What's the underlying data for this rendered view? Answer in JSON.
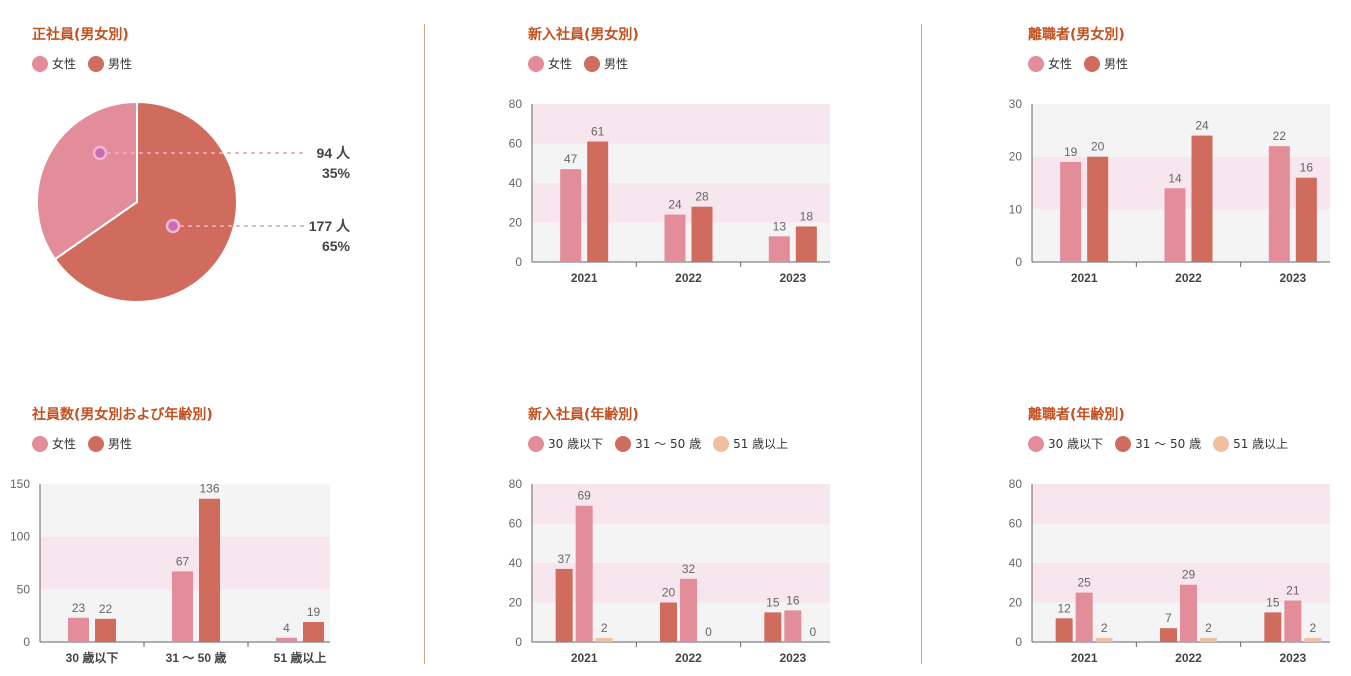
{
  "colors": {
    "female": "#e38c9a",
    "male": "#cf6c5e",
    "over51": "#f0bfa0",
    "band_pink": "#f8e6ef",
    "band_gray": "#f4f4f4",
    "title": "#c4501f",
    "axis": "#666666",
    "label": "#666666"
  },
  "panels": {
    "p1": {
      "title": "正社員(男女別)",
      "legend": [
        {
          "label": "女性",
          "color_key": "female"
        },
        {
          "label": "男性",
          "color_key": "male"
        }
      ],
      "chart_data": {
        "type": "pie",
        "slices": [
          {
            "name": "女性",
            "value": 94,
            "percent": 35,
            "color_key": "female"
          },
          {
            "name": "男性",
            "value": 177,
            "percent": 65,
            "color_key": "male"
          }
        ],
        "labels": [
          {
            "count": "94 人",
            "percent": "35%"
          },
          {
            "count": "177 人",
            "percent": "65%"
          }
        ]
      }
    },
    "p2": {
      "title": "新入社員(男女別)",
      "legend": [
        {
          "label": "女性",
          "color_key": "female"
        },
        {
          "label": "男性",
          "color_key": "male"
        }
      ],
      "chart_data": {
        "type": "bar",
        "categories": [
          "2021",
          "2022",
          "2023"
        ],
        "series": [
          {
            "name": "女性",
            "values": [
              47,
              24,
              13
            ],
            "color_key": "female"
          },
          {
            "name": "男性",
            "values": [
              61,
              28,
              18
            ],
            "color_key": "male"
          }
        ],
        "ylim": [
          0,
          80
        ],
        "yticks": [
          0,
          20,
          40,
          60,
          80
        ],
        "band_step": 20
      }
    },
    "p3": {
      "title": "離職者(男女別)",
      "legend": [
        {
          "label": "女性",
          "color_key": "female"
        },
        {
          "label": "男性",
          "color_key": "male"
        }
      ],
      "chart_data": {
        "type": "bar",
        "categories": [
          "2021",
          "2022",
          "2023"
        ],
        "series": [
          {
            "name": "女性",
            "values": [
              19,
              14,
              22
            ],
            "color_key": "female"
          },
          {
            "name": "男性",
            "values": [
              20,
              24,
              16
            ],
            "color_key": "male"
          }
        ],
        "ylim": [
          0,
          30
        ],
        "yticks": [
          0,
          10,
          20,
          30
        ],
        "band_step": 10
      }
    },
    "p4": {
      "title": "社員数(男女別および年齢別)",
      "legend": [
        {
          "label": "女性",
          "color_key": "female"
        },
        {
          "label": "男性",
          "color_key": "male"
        }
      ],
      "chart_data": {
        "type": "bar",
        "categories": [
          "30 歳以下",
          "31 〜 50 歳",
          "51 歳以上"
        ],
        "series": [
          {
            "name": "女性",
            "values": [
              23,
              67,
              4
            ],
            "color_key": "female"
          },
          {
            "name": "男性",
            "values": [
              22,
              136,
              19
            ],
            "color_key": "male"
          }
        ],
        "ylim": [
          0,
          150
        ],
        "yticks": [
          0,
          50,
          100,
          150
        ],
        "band_step": 50
      }
    },
    "p5": {
      "title": "新入社員(年齢別)",
      "legend": [
        {
          "label": "30 歳以下",
          "color_key": "female"
        },
        {
          "label": "31 〜 50 歳",
          "color_key": "male"
        },
        {
          "label": "51 歳以上",
          "color_key": "over51"
        }
      ],
      "chart_data": {
        "type": "bar",
        "categories": [
          "2021",
          "2022",
          "2023"
        ],
        "series": [
          {
            "name": "31 〜 50 歳",
            "values": [
              37,
              20,
              15
            ],
            "color_key": "male"
          },
          {
            "name": "30 歳以下",
            "values": [
              69,
              32,
              16
            ],
            "color_key": "female"
          },
          {
            "name": "51 歳以上",
            "values": [
              2,
              0,
              0
            ],
            "color_key": "over51"
          }
        ],
        "ylim": [
          0,
          80
        ],
        "yticks": [
          0,
          20,
          40,
          60,
          80
        ],
        "band_step": 20
      }
    },
    "p6": {
      "title": "離職者(年齢別)",
      "legend": [
        {
          "label": "30 歳以下",
          "color_key": "female"
        },
        {
          "label": "31 〜 50 歳",
          "color_key": "male"
        },
        {
          "label": "51 歳以上",
          "color_key": "over51"
        }
      ],
      "chart_data": {
        "type": "bar",
        "categories": [
          "2021",
          "2022",
          "2023"
        ],
        "series": [
          {
            "name": "31 〜 50 歳",
            "values": [
              12,
              7,
              15
            ],
            "color_key": "male"
          },
          {
            "name": "30 歳以下",
            "values": [
              25,
              29,
              21
            ],
            "color_key": "female"
          },
          {
            "name": "51 歳以上",
            "values": [
              2,
              2,
              2
            ],
            "color_key": "over51"
          }
        ],
        "ylim": [
          0,
          80
        ],
        "yticks": [
          0,
          20,
          40,
          60,
          80
        ],
        "band_step": 20
      }
    }
  }
}
